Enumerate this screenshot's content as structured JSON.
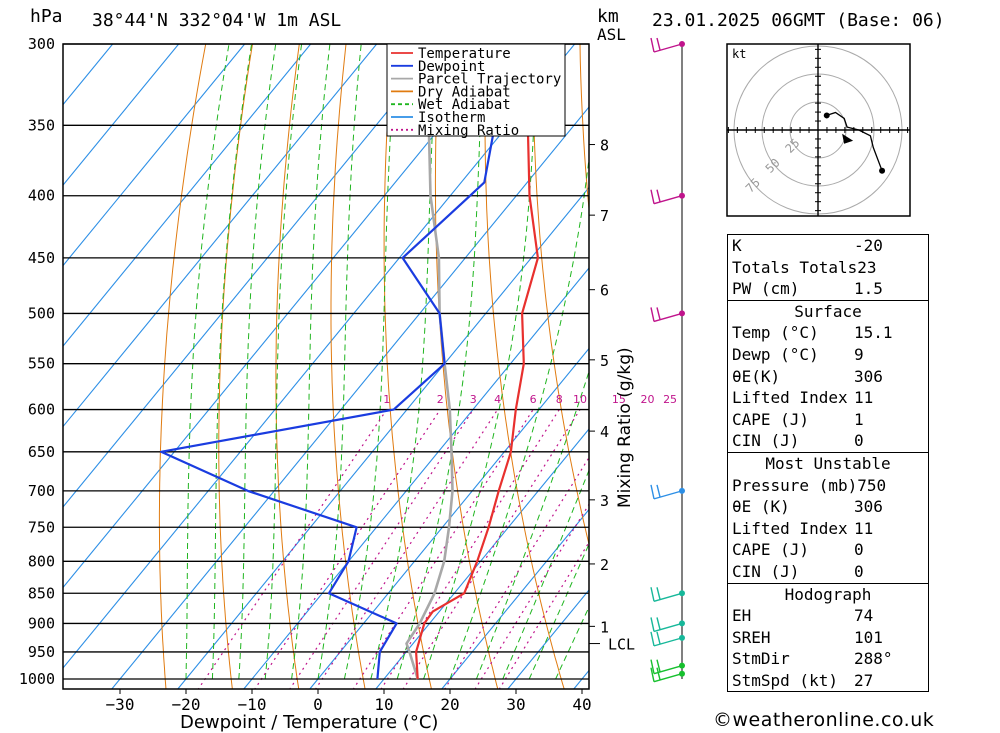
{
  "header": {
    "pressure_unit": "hPa",
    "location": "38°44'N 332°04'W 1m ASL",
    "height_unit": "km",
    "height_ref": "ASL",
    "datetime": "23.01.2025 06GMT (Base: 06)"
  },
  "chart_data": {
    "type": "skew-T log-P",
    "xlabel": "Dewpoint / Temperature (°C)",
    "ylabel": "hPa",
    "mixing_ratio_axis_label": "Mixing Ratio (g/kg)",
    "pressure_ticks": [
      300,
      350,
      400,
      450,
      500,
      550,
      600,
      650,
      700,
      750,
      800,
      850,
      900,
      950,
      1000
    ],
    "temperature_ticks": [
      -30,
      -20,
      -10,
      0,
      10,
      20,
      30,
      40
    ],
    "height_ticks_km": [
      {
        "label": "8",
        "p": 363
      },
      {
        "label": "7",
        "p": 415
      },
      {
        "label": "6",
        "p": 478
      },
      {
        "label": "5",
        "p": 546
      },
      {
        "label": "4",
        "p": 625
      },
      {
        "label": "3",
        "p": 712
      },
      {
        "label": "2",
        "p": 804
      },
      {
        "label": "1",
        "p": 905
      }
    ],
    "lcl": {
      "label": "LCL",
      "p": 935
    },
    "mixing_ratio_labels": [
      "1",
      "2",
      "3",
      "4",
      "6",
      "8",
      "10",
      "15",
      "20",
      "25"
    ],
    "legend": [
      {
        "name": "Temperature",
        "color": "#e8302e",
        "style": "solid"
      },
      {
        "name": "Dewpoint",
        "color": "#1a3ce0",
        "style": "solid"
      },
      {
        "name": "Parcel Trajectory",
        "color": "#a8a8a8",
        "style": "solid"
      },
      {
        "name": "Dry Adiabat",
        "color": "#e07b10",
        "style": "solid"
      },
      {
        "name": "Wet Adiabat",
        "color": "#1fb51f",
        "style": "dashed"
      },
      {
        "name": "Isotherm",
        "color": "#2d8fe6",
        "style": "solid"
      },
      {
        "name": "Mixing Ratio",
        "color": "#c0148c",
        "style": "dotted"
      }
    ],
    "temperature_profile": [
      [
        300,
        -45
      ],
      [
        350,
        -37
      ],
      [
        400,
        -28
      ],
      [
        450,
        -19
      ],
      [
        500,
        -14.5
      ],
      [
        550,
        -8
      ],
      [
        600,
        -3.5
      ],
      [
        650,
        1
      ],
      [
        700,
        4
      ],
      [
        750,
        7
      ],
      [
        800,
        9.5
      ],
      [
        850,
        11.5
      ],
      [
        880,
        9
      ],
      [
        900,
        9.2
      ],
      [
        950,
        11.5
      ],
      [
        1000,
        15.1
      ]
    ],
    "dewpoint_profile": [
      [
        300,
        -47
      ],
      [
        350,
        -42
      ],
      [
        390,
        -36.5
      ],
      [
        400,
        -37
      ],
      [
        450,
        -39.5
      ],
      [
        500,
        -27
      ],
      [
        550,
        -20
      ],
      [
        600,
        -22
      ],
      [
        650,
        -52
      ],
      [
        700,
        -34
      ],
      [
        750,
        -13
      ],
      [
        800,
        -10
      ],
      [
        850,
        -9
      ],
      [
        900,
        5
      ],
      [
        950,
        6
      ],
      [
        1000,
        9
      ]
    ],
    "parcel_profile": [
      [
        300,
        -64
      ],
      [
        350,
        -52
      ],
      [
        400,
        -43
      ],
      [
        450,
        -34
      ],
      [
        500,
        -27
      ],
      [
        550,
        -20
      ],
      [
        600,
        -13.5
      ],
      [
        650,
        -8
      ],
      [
        700,
        -3
      ],
      [
        750,
        1
      ],
      [
        800,
        4.5
      ],
      [
        850,
        7
      ],
      [
        900,
        8.5
      ],
      [
        935,
        9
      ],
      [
        950,
        10.5
      ],
      [
        1000,
        15.1
      ]
    ],
    "wind_barbs": [
      {
        "p": 300,
        "color": "#c0148c"
      },
      {
        "p": 400,
        "color": "#c0148c"
      },
      {
        "p": 500,
        "color": "#c0148c"
      },
      {
        "p": 700,
        "color": "#2d8fe6"
      },
      {
        "p": 850,
        "color": "#17b89a"
      },
      {
        "p": 900,
        "color": "#17b89a"
      },
      {
        "p": 925,
        "color": "#17b89a"
      },
      {
        "p": 975,
        "color": "#17c02e"
      },
      {
        "p": 990,
        "color": "#17c02e"
      }
    ],
    "hodograph": {
      "unit": "kt",
      "rings": [
        25,
        50,
        75
      ],
      "trace_kt": [
        [
          3,
          5
        ],
        [
          6,
          6
        ],
        [
          9,
          4
        ],
        [
          10,
          1
        ],
        [
          14,
          0
        ],
        [
          18,
          -2
        ],
        [
          19,
          -6
        ],
        [
          22,
          -14
        ]
      ],
      "storm_motion_marker_kt": [
        10,
        -3
      ]
    }
  },
  "indices": {
    "basic": [
      {
        "label": "K",
        "value": "-20"
      },
      {
        "label": "Totals Totals",
        "value": "23"
      },
      {
        "label": "PW (cm)",
        "value": "1.5"
      }
    ],
    "surface_title": "Surface",
    "surface": [
      {
        "label": "Temp (°C)",
        "value": "15.1"
      },
      {
        "label": "Dewp (°C)",
        "value": "9"
      },
      {
        "label": "θE(K)",
        "value": "306"
      },
      {
        "label": "Lifted Index",
        "value": "11"
      },
      {
        "label": "CAPE (J)",
        "value": "1"
      },
      {
        "label": "CIN (J)",
        "value": "0"
      }
    ],
    "unstable_title": "Most Unstable",
    "unstable": [
      {
        "label": "Pressure (mb)",
        "value": "750"
      },
      {
        "label": "θE (K)",
        "value": "306"
      },
      {
        "label": "Lifted Index",
        "value": "11"
      },
      {
        "label": "CAPE (J)",
        "value": "0"
      },
      {
        "label": "CIN (J)",
        "value": "0"
      }
    ],
    "hodograph_title": "Hodograph",
    "hodograph": [
      {
        "label": "EH",
        "value": "74"
      },
      {
        "label": "SREH",
        "value": "101"
      },
      {
        "label": "StmDir",
        "value": "288°"
      },
      {
        "label": "StmSpd (kt)",
        "value": "27"
      }
    ]
  },
  "footer": "©weatheronline.co.uk"
}
